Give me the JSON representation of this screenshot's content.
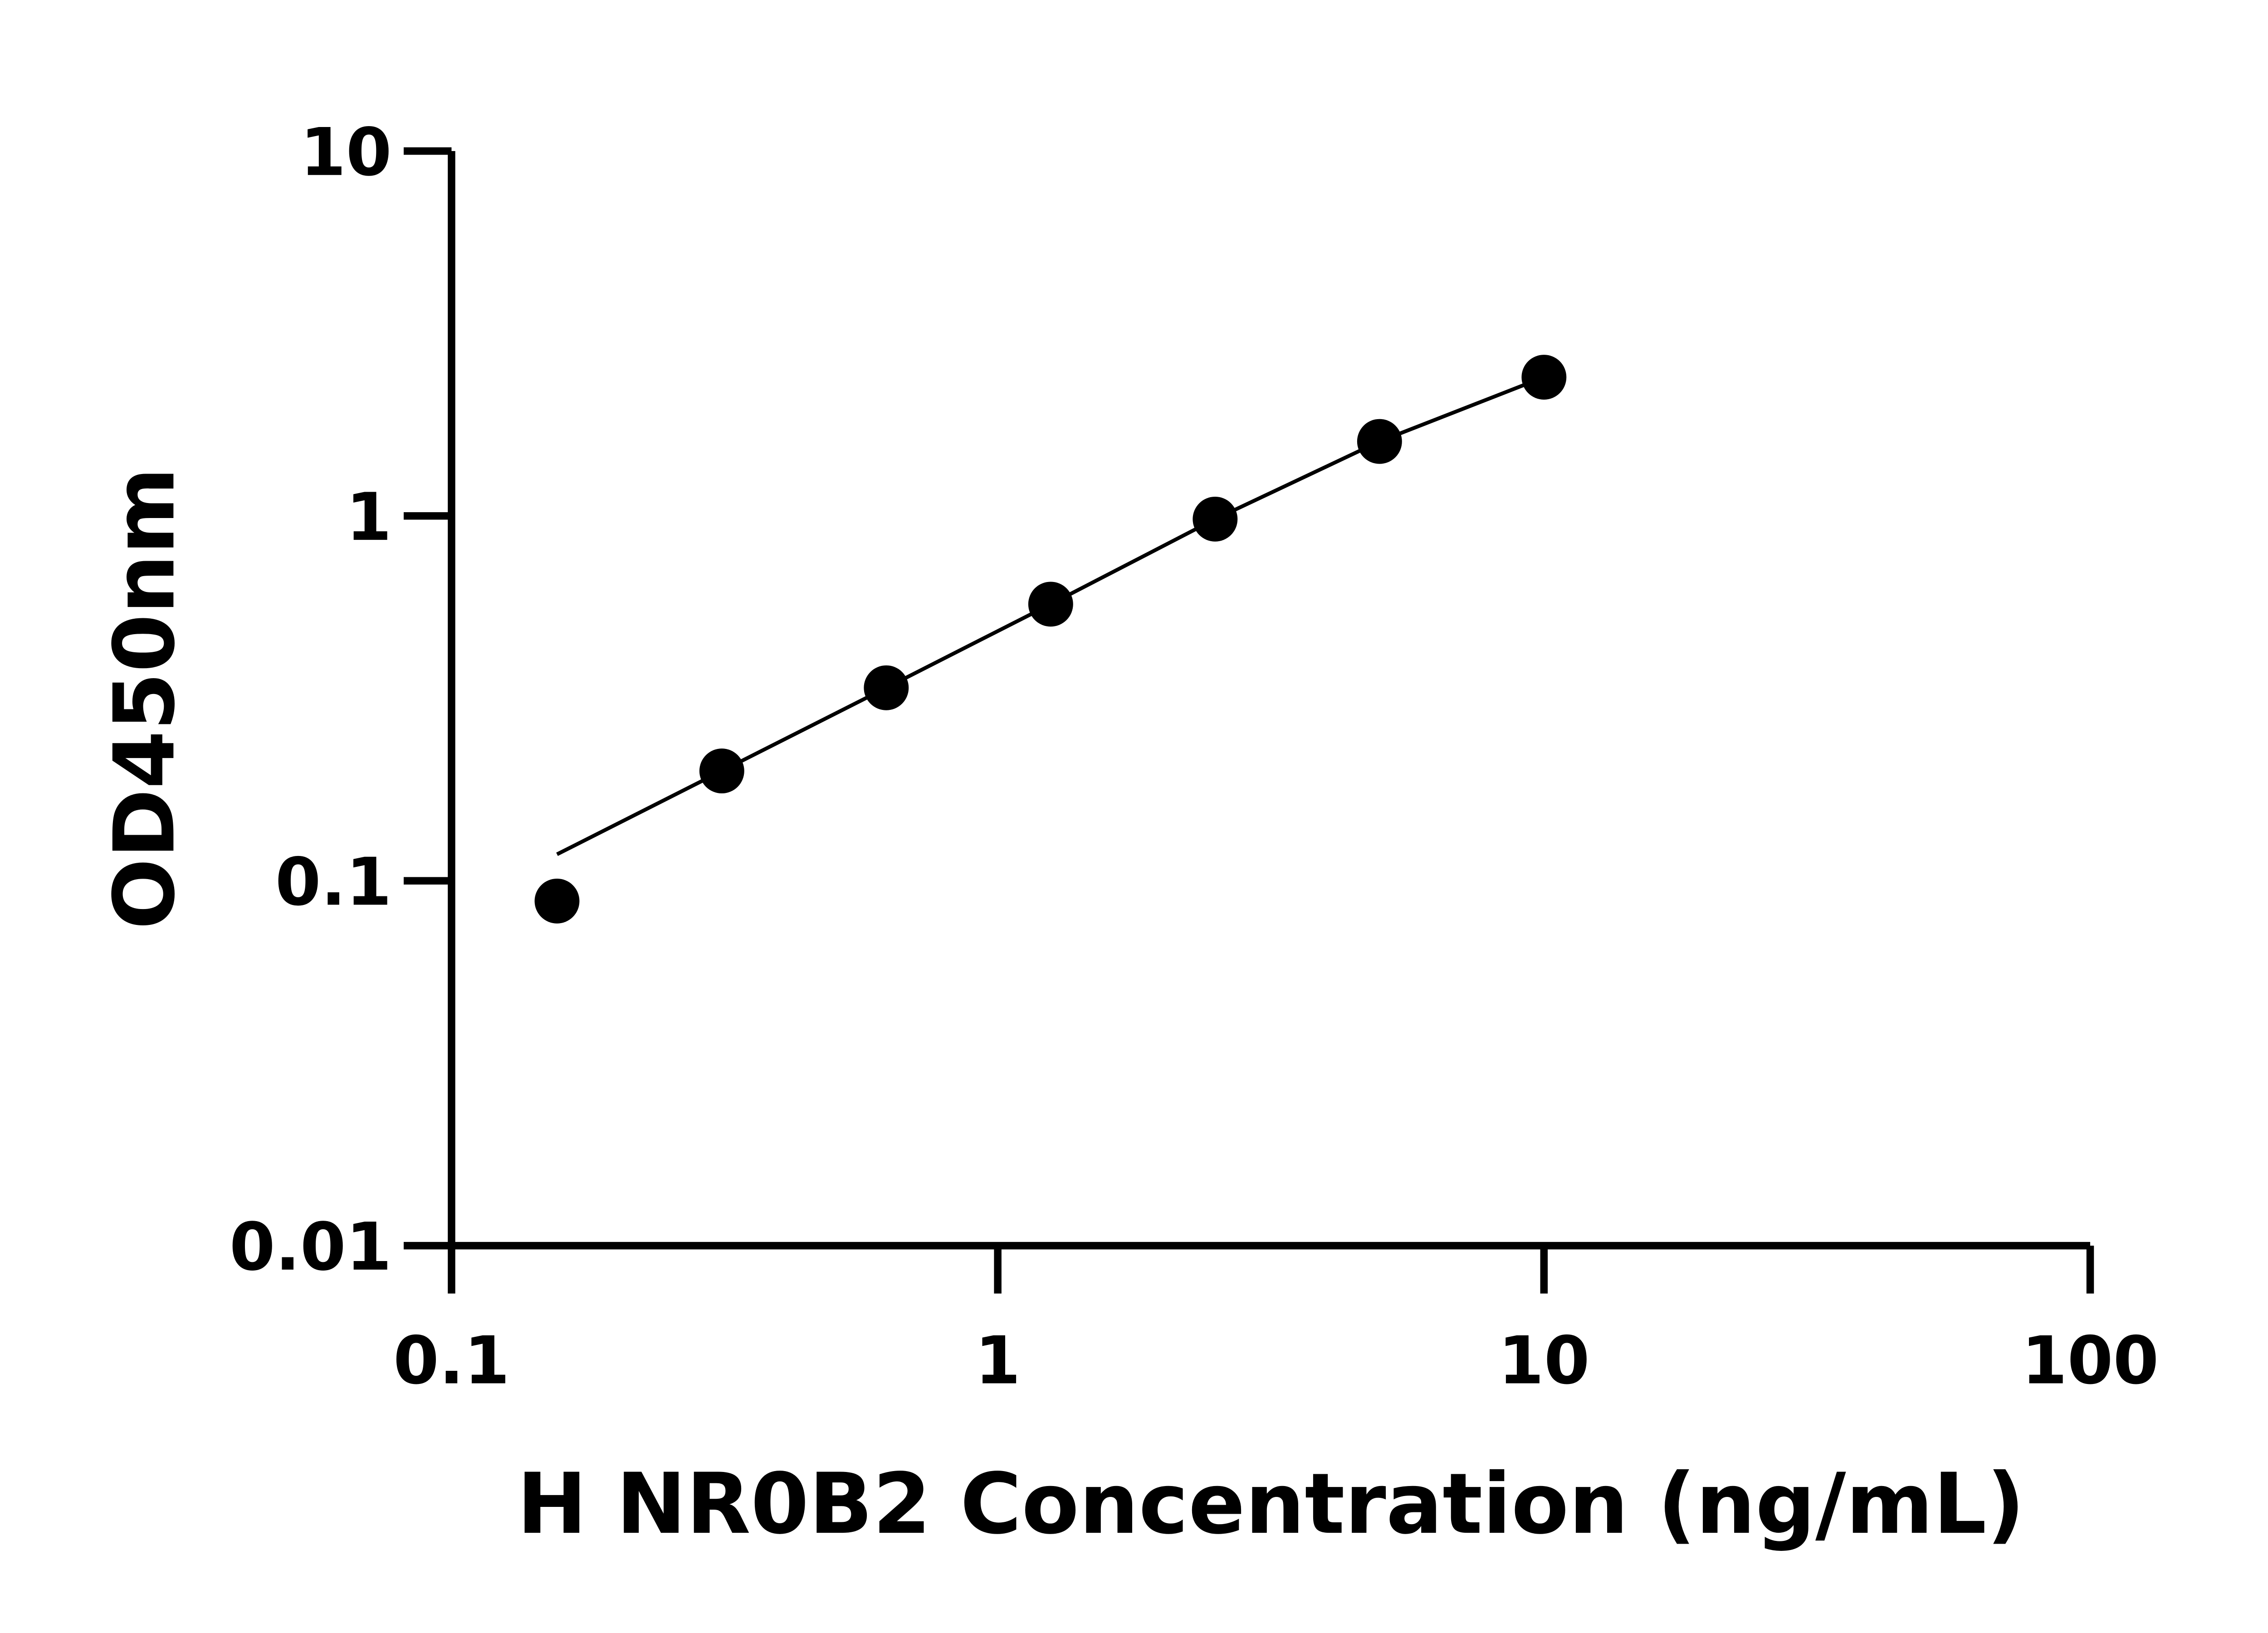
{
  "chart_data": {
    "type": "scatter",
    "title": "",
    "xlabel": "H NR0B2 Concentration (ng/mL)",
    "ylabel": "OD450nm",
    "x_scale": "log",
    "y_scale": "log",
    "xlim": [
      0.1,
      100
    ],
    "ylim": [
      0.01,
      10
    ],
    "x_ticks": [
      "0.1",
      "1",
      "10",
      "100"
    ],
    "y_ticks": [
      "0.01",
      "0.1",
      "1",
      "10"
    ],
    "grid": false,
    "fit_line": true,
    "series": [
      {
        "x": [
          0.156,
          0.3125,
          0.625,
          1.25,
          2.5,
          5,
          10
        ],
        "y": [
          0.088,
          0.2,
          0.338,
          0.573,
          0.98,
          1.6,
          2.4
        ]
      }
    ],
    "colors": {
      "marker": "#000000",
      "line": "#000000",
      "axis": "#000000"
    }
  }
}
